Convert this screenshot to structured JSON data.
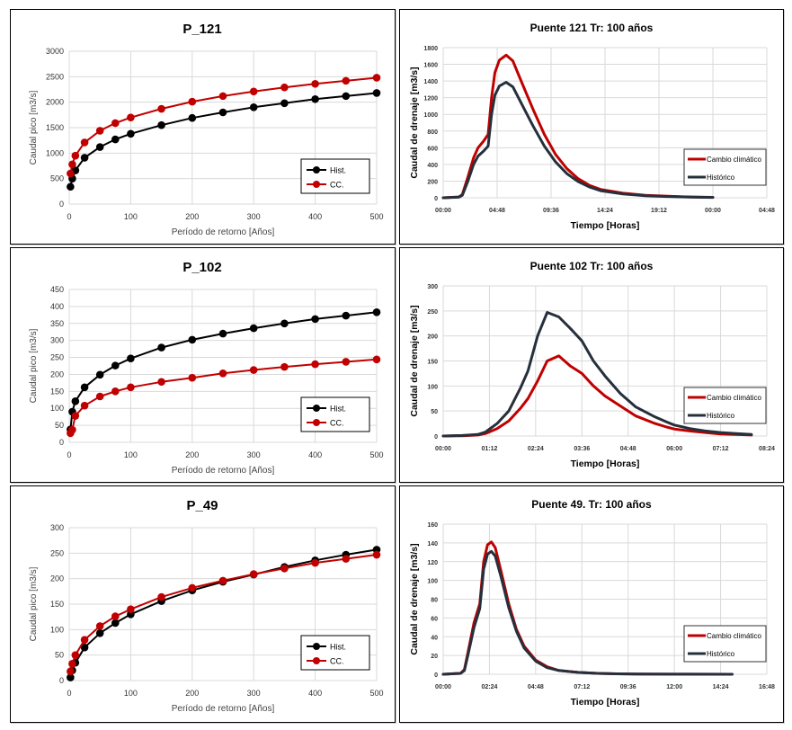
{
  "chart_data": [
    {
      "id": "p121-peak",
      "type": "line",
      "title": "P_121",
      "xlabel": "Período de retorno [Años]",
      "ylabel": "Caudal pico [m3/s]",
      "xlim": [
        0,
        500
      ],
      "ylim": [
        0,
        3000
      ],
      "xticks": [
        0,
        100,
        200,
        300,
        400,
        500
      ],
      "yticks": [
        0,
        500,
        1000,
        1500,
        2000,
        2500,
        3000
      ],
      "grid": true,
      "legend": "bottom-right",
      "x": [
        2,
        5,
        10,
        25,
        50,
        75,
        100,
        150,
        200,
        250,
        300,
        350,
        400,
        450,
        500
      ],
      "series": [
        {
          "name": "Hist.",
          "color": "#000000",
          "values": [
            340,
            500,
            660,
            910,
            1120,
            1270,
            1380,
            1550,
            1690,
            1800,
            1900,
            1980,
            2060,
            2120,
            2180
          ]
        },
        {
          "name": "CC.",
          "color": "#c00000",
          "values": [
            600,
            780,
            950,
            1210,
            1440,
            1590,
            1700,
            1870,
            2010,
            2120,
            2210,
            2290,
            2360,
            2420,
            2480
          ]
        }
      ]
    },
    {
      "id": "p121-hydro",
      "type": "line",
      "title": "Puente 121 Tr: 100 años",
      "xlabel": "Tiempo [Horas]",
      "ylabel": "Caudal de drenaje [m3/s]",
      "xlim_hours": [
        0,
        28.8
      ],
      "ylim": [
        0,
        1800
      ],
      "xtick_labels": [
        "00:00",
        "04:48",
        "09:36",
        "14:24",
        "19:12",
        "00:00",
        "04:48"
      ],
      "yticks": [
        0,
        200,
        400,
        600,
        800,
        1000,
        1200,
        1400,
        1600,
        1800
      ],
      "grid": true,
      "legend": "right",
      "x_hours": [
        0,
        1.4,
        1.7,
        2.2,
        2.7,
        3.1,
        3.6,
        4.0,
        4.3,
        4.6,
        5.0,
        5.6,
        6.2,
        7.0,
        8.0,
        9.0,
        10.0,
        11.0,
        12.0,
        13.0,
        14.0,
        16.0,
        18.0,
        20.0,
        22.0,
        24.0
      ],
      "series": [
        {
          "name": "Cambio climático",
          "color": "#c00000",
          "values": [
            0,
            10,
            40,
            250,
            480,
            600,
            680,
            760,
            1200,
            1500,
            1650,
            1710,
            1640,
            1380,
            1060,
            760,
            520,
            350,
            230,
            150,
            100,
            55,
            30,
            18,
            10,
            5
          ]
        },
        {
          "name": "Histórico",
          "color": "#25303c",
          "values": [
            0,
            8,
            30,
            200,
            400,
            500,
            560,
            620,
            1000,
            1230,
            1340,
            1385,
            1330,
            1120,
            860,
            620,
            430,
            290,
            195,
            130,
            85,
            45,
            25,
            15,
            8,
            4
          ]
        }
      ]
    },
    {
      "id": "p102-peak",
      "type": "line",
      "title": "P_102",
      "xlabel": "Período de retorno [Años]",
      "ylabel": "Caudal pico [m3/s]",
      "xlim": [
        0,
        500
      ],
      "ylim": [
        0,
        450
      ],
      "xticks": [
        0,
        100,
        200,
        300,
        400,
        500
      ],
      "yticks": [
        0,
        50,
        100,
        150,
        200,
        250,
        300,
        350,
        400,
        450
      ],
      "grid": true,
      "legend": "bottom-right",
      "x": [
        2,
        5,
        10,
        25,
        50,
        75,
        100,
        150,
        200,
        250,
        300,
        350,
        400,
        450,
        500
      ],
      "series": [
        {
          "name": "Hist.",
          "color": "#000000",
          "values": [
            38,
            90,
            121,
            162,
            199,
            226,
            247,
            279,
            302,
            320,
            336,
            350,
            363,
            373,
            383
          ]
        },
        {
          "name": "CC.",
          "color": "#c00000",
          "values": [
            27,
            37,
            78,
            108,
            135,
            150,
            162,
            178,
            190,
            203,
            213,
            222,
            230,
            237,
            244
          ]
        }
      ]
    },
    {
      "id": "p102-hydro",
      "type": "line",
      "title": "Puente 102 Tr: 100 años",
      "xlabel": "Tiempo [Horas]",
      "ylabel": "Caudal de drenaje [m3/s]",
      "xlim_hours": [
        0,
        8.4
      ],
      "ylim": [
        0,
        300
      ],
      "xtick_labels": [
        "00:00",
        "01:12",
        "02:24",
        "03:36",
        "04:48",
        "06:00",
        "07:12",
        "08:24"
      ],
      "yticks": [
        0,
        50,
        100,
        150,
        200,
        250,
        300
      ],
      "grid": true,
      "legend": "right",
      "x_hours": [
        0,
        0.5,
        0.9,
        1.1,
        1.4,
        1.7,
        2.0,
        2.2,
        2.45,
        2.7,
        3.0,
        3.3,
        3.6,
        3.9,
        4.2,
        4.6,
        5.0,
        5.5,
        5.8,
        6.0,
        6.4,
        6.8,
        7.2,
        7.6,
        8.0
      ],
      "series": [
        {
          "name": "Cambio climático",
          "color": "#c00000",
          "values": [
            0,
            0.5,
            2,
            5,
            15,
            30,
            55,
            75,
            110,
            150,
            160,
            140,
            125,
            100,
            80,
            60,
            40,
            25,
            18,
            14,
            10,
            7,
            4,
            3,
            2
          ]
        },
        {
          "name": "Histórico",
          "color": "#25303c",
          "values": [
            0,
            1,
            3,
            8,
            25,
            50,
            95,
            130,
            200,
            247,
            238,
            215,
            190,
            150,
            120,
            85,
            58,
            38,
            28,
            22,
            15,
            10,
            7,
            5,
            3
          ]
        }
      ]
    },
    {
      "id": "p49-peak",
      "type": "line",
      "title": "P_49",
      "xlabel": "Período de retorno [Años]",
      "ylabel": "Caudal pico [m3/s]",
      "xlim": [
        0,
        500
      ],
      "ylim": [
        0,
        300
      ],
      "xticks": [
        0,
        100,
        200,
        300,
        400,
        500
      ],
      "yticks": [
        0,
        50,
        100,
        150,
        200,
        250,
        300
      ],
      "grid": true,
      "legend": "bottom-right",
      "x": [
        2,
        5,
        10,
        25,
        50,
        75,
        100,
        150,
        200,
        250,
        300,
        350,
        400,
        450,
        500
      ],
      "series": [
        {
          "name": "Hist.",
          "color": "#000000",
          "values": [
            6,
            20,
            35,
            65,
            93,
            113,
            130,
            156,
            177,
            194,
            208,
            223,
            236,
            247,
            257
          ]
        },
        {
          "name": "CC.",
          "color": "#c00000",
          "values": [
            18,
            33,
            50,
            80,
            107,
            126,
            140,
            164,
            182,
            196,
            209,
            220,
            231,
            239,
            247
          ]
        }
      ]
    },
    {
      "id": "p49-hydro",
      "type": "line",
      "title": "Puente 49. Tr: 100 años",
      "xlabel": "Tiempo [Horas]",
      "ylabel": "Caudal de drenaje [m3/s]",
      "xlim_hours": [
        0,
        16.8
      ],
      "ylim": [
        0,
        160
      ],
      "xtick_labels": [
        "00:00",
        "02:24",
        "04:48",
        "07:12",
        "09:36",
        "12:00",
        "14:24",
        "16:48"
      ],
      "yticks": [
        0,
        20,
        40,
        60,
        80,
        100,
        120,
        140,
        160
      ],
      "grid": true,
      "legend": "right",
      "x_hours": [
        0,
        0.9,
        1.1,
        1.3,
        1.6,
        1.9,
        2.1,
        2.3,
        2.5,
        2.7,
        3.0,
        3.4,
        3.8,
        4.2,
        4.8,
        5.4,
        6.0,
        7.0,
        8.0,
        9.0,
        10.0,
        12.0,
        15.0
      ],
      "series": [
        {
          "name": "Cambio climático",
          "color": "#c00000",
          "values": [
            0,
            1,
            5,
            25,
            55,
            75,
            120,
            138,
            141,
            135,
            110,
            75,
            48,
            30,
            15,
            8,
            4,
            2,
            1,
            0.5,
            0.3,
            0.1,
            0
          ]
        },
        {
          "name": "Histórico",
          "color": "#25303c",
          "values": [
            0,
            1,
            4,
            22,
            50,
            70,
            112,
            128,
            131,
            126,
            104,
            71,
            46,
            28,
            14,
            7,
            4,
            2,
            1,
            0.5,
            0.3,
            0.1,
            0
          ]
        }
      ]
    }
  ]
}
